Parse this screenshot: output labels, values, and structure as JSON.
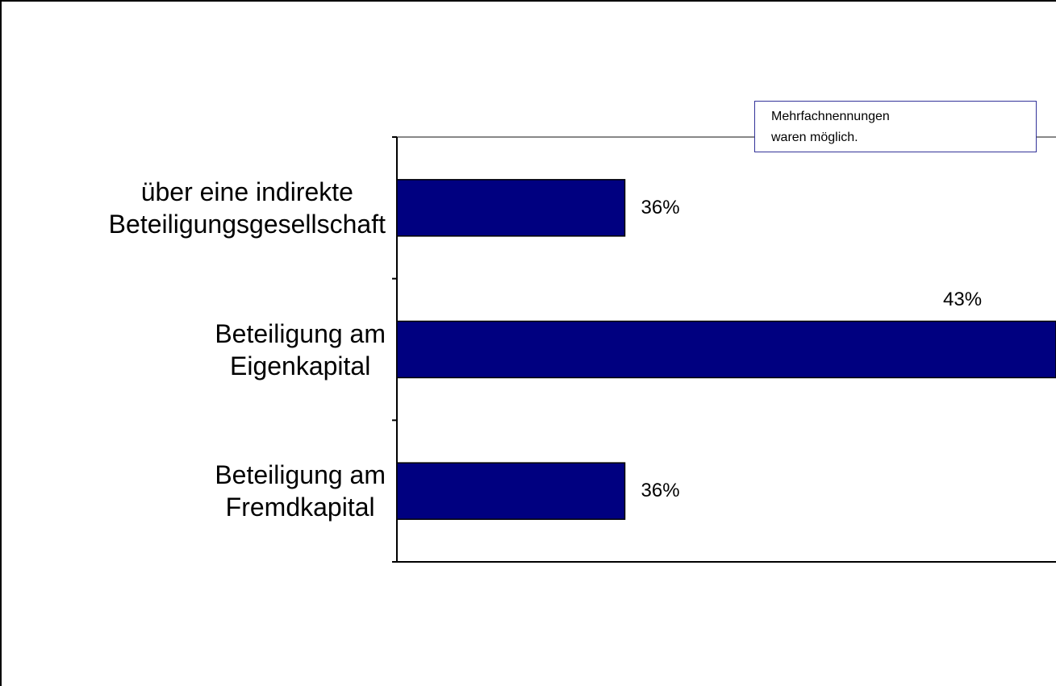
{
  "chart_data": {
    "type": "barh",
    "categories": [
      "über eine indirekte\nBeteiligungsgesellschaft",
      "Beteiligung am\nEigenkapital",
      "Beteiligung am\nFremdkapital"
    ],
    "values": [
      36,
      43,
      36
    ],
    "value_labels": [
      "36%",
      "43%",
      "36%"
    ],
    "color": "#000080",
    "xlim": [
      32.3,
      43
    ],
    "annotation": "Mehrfachnennungen\nwaren möglich."
  }
}
